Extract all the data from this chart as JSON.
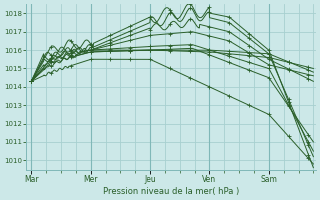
{
  "background_color": "#cce8e8",
  "plot_bg_color": "#cce8e8",
  "grid_color": "#a8d0d0",
  "line_color": "#2a5f2a",
  "ylabel_text": "Pression niveau de la mer( hPa )",
  "ylim": [
    1009.5,
    1018.5
  ],
  "yticks": [
    1010,
    1011,
    1012,
    1013,
    1014,
    1015,
    1016,
    1017,
    1018
  ],
  "xtick_labels": [
    "Mar",
    "Mer",
    "Jeu",
    "Ven",
    "Sam"
  ],
  "xtick_positions": [
    0,
    24,
    48,
    72,
    96
  ],
  "xlim": [
    -2,
    115
  ],
  "total_hours": 114
}
